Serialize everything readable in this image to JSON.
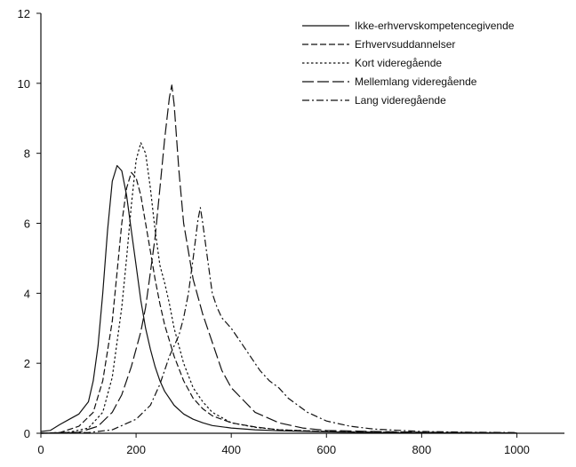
{
  "chart_data": {
    "type": "line",
    "xlim": [
      0,
      1100
    ],
    "ylim": [
      0,
      12
    ],
    "x_ticks": [
      0,
      200,
      400,
      600,
      800,
      1000
    ],
    "x_tick_labels": [
      "0",
      "200",
      "400",
      "600",
      "800",
      "1000"
    ],
    "y_ticks": [
      0,
      2,
      4,
      6,
      8,
      10,
      12
    ],
    "y_tick_labels": [
      "0",
      "2",
      "4",
      "6",
      "8",
      "10",
      "12"
    ],
    "grid": false,
    "legend_position": "top-right",
    "series": [
      {
        "name": "Ikke-erhvervskompetencegivende",
        "dash": "solid",
        "x": [
          0,
          20,
          40,
          60,
          80,
          100,
          110,
          120,
          130,
          140,
          150,
          160,
          170,
          180,
          190,
          200,
          210,
          220,
          230,
          240,
          250,
          260,
          280,
          300,
          320,
          340,
          360,
          400,
          450,
          500,
          600,
          700,
          800,
          900,
          1000
        ],
        "y": [
          0.05,
          0.08,
          0.25,
          0.4,
          0.55,
          0.9,
          1.5,
          2.5,
          4.0,
          5.8,
          7.2,
          7.65,
          7.5,
          6.8,
          5.8,
          4.8,
          3.8,
          3.0,
          2.4,
          1.9,
          1.5,
          1.2,
          0.8,
          0.55,
          0.4,
          0.3,
          0.22,
          0.15,
          0.1,
          0.07,
          0.04,
          0.02,
          0.01,
          0.01,
          0.01
        ]
      },
      {
        "name": "Erhvervsuddannelser",
        "dash": "dash",
        "x": [
          0,
          40,
          80,
          110,
          130,
          150,
          160,
          170,
          180,
          190,
          200,
          210,
          220,
          230,
          240,
          250,
          260,
          280,
          300,
          320,
          340,
          360,
          400,
          450,
          500,
          600,
          700,
          800,
          1000
        ],
        "y": [
          0,
          0.02,
          0.2,
          0.6,
          1.5,
          3.2,
          4.6,
          6.0,
          7.0,
          7.45,
          7.3,
          6.8,
          6.0,
          5.2,
          4.4,
          3.7,
          3.1,
          2.2,
          1.5,
          1.0,
          0.7,
          0.5,
          0.3,
          0.18,
          0.1,
          0.05,
          0.03,
          0.02,
          0.01
        ]
      },
      {
        "name": "Kort videregående",
        "dash": "dot",
        "x": [
          0,
          60,
          100,
          130,
          150,
          170,
          180,
          190,
          200,
          210,
          220,
          230,
          240,
          250,
          260,
          270,
          280,
          300,
          320,
          340,
          360,
          400,
          450,
          500,
          600,
          700,
          800,
          1000
        ],
        "y": [
          0,
          0.03,
          0.15,
          0.6,
          1.6,
          3.6,
          5.0,
          6.5,
          7.8,
          8.3,
          8.0,
          7.0,
          5.8,
          4.8,
          4.3,
          3.7,
          3.0,
          2.0,
          1.3,
          0.9,
          0.6,
          0.3,
          0.17,
          0.1,
          0.05,
          0.03,
          0.02,
          0.01
        ]
      },
      {
        "name": "Mellemlang videregående",
        "dash": "longdash",
        "x": [
          0,
          80,
          120,
          150,
          170,
          190,
          210,
          220,
          230,
          240,
          250,
          260,
          270,
          275,
          280,
          290,
          300,
          320,
          340,
          360,
          380,
          400,
          450,
          500,
          550,
          600,
          700,
          800,
          900,
          1000
        ],
        "y": [
          0,
          0.03,
          0.2,
          0.6,
          1.1,
          1.9,
          2.9,
          3.6,
          4.6,
          5.6,
          7.0,
          8.4,
          9.6,
          9.95,
          9.4,
          7.5,
          6.0,
          4.4,
          3.4,
          2.6,
          1.8,
          1.3,
          0.6,
          0.3,
          0.15,
          0.08,
          0.05,
          0.03,
          0.02,
          0.01
        ]
      },
      {
        "name": "Lang videregående",
        "dash": "dashdot",
        "x": [
          0,
          100,
          150,
          200,
          230,
          250,
          270,
          290,
          300,
          310,
          320,
          330,
          335,
          340,
          350,
          360,
          370,
          380,
          400,
          420,
          440,
          460,
          480,
          500,
          520,
          540,
          560,
          600,
          650,
          700,
          800,
          900,
          1000
        ],
        "y": [
          0,
          0.02,
          0.1,
          0.4,
          0.8,
          1.4,
          2.2,
          2.8,
          3.3,
          4.0,
          5.0,
          6.1,
          6.45,
          6.0,
          5.0,
          4.0,
          3.6,
          3.3,
          3.0,
          2.6,
          2.2,
          1.8,
          1.5,
          1.3,
          1.0,
          0.8,
          0.6,
          0.35,
          0.2,
          0.12,
          0.05,
          0.03,
          0.02
        ]
      }
    ]
  }
}
